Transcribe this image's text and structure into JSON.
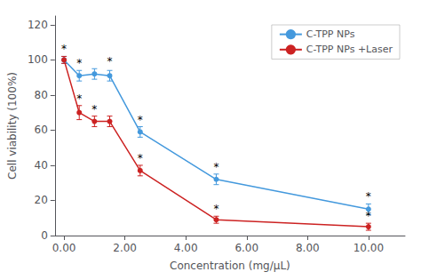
{
  "chart_data": {
    "type": "line",
    "xlabel": "Concentration (mg/μL)",
    "ylabel": "Cell viability (100%)",
    "x": [
      0.0,
      0.5,
      1.0,
      1.5,
      2.5,
      5.0,
      10.0
    ],
    "series": [
      {
        "name": "C-TPP NPs",
        "color": "#4499DD",
        "marker": "circle",
        "line_style": "solid",
        "values": [
          100,
          91,
          92,
          91,
          59,
          32,
          15
        ],
        "errors": [
          2,
          3,
          3,
          3,
          3,
          3,
          3
        ]
      },
      {
        "name": "C-TPP NPs +Laser",
        "color": "#CC2222",
        "marker": "circle",
        "line_style": "solid",
        "values": [
          100,
          70,
          65,
          65,
          37,
          9,
          5
        ],
        "errors": [
          2,
          4,
          3,
          3,
          3,
          2,
          2
        ]
      }
    ],
    "annotations": [
      {
        "text": "*",
        "x": 0.0,
        "y": 103
      },
      {
        "text": "*",
        "x": 0.5,
        "y": 95
      },
      {
        "text": "*",
        "x": 1.5,
        "y": 96
      },
      {
        "text": "*",
        "x": 2.5,
        "y": 63
      },
      {
        "text": "*",
        "x": 5.0,
        "y": 36
      },
      {
        "text": "*",
        "x": 10.0,
        "y": 19
      },
      {
        "text": "*",
        "x": 0.5,
        "y": 75
      },
      {
        "text": "*",
        "x": 1.0,
        "y": 69
      },
      {
        "text": "*",
        "x": 2.5,
        "y": 41
      },
      {
        "text": "*",
        "x": 5.0,
        "y": 12
      },
      {
        "text": "*",
        "x": 10.0,
        "y": 8
      }
    ],
    "xlim": [
      -0.3,
      11.2
    ],
    "xticks": [
      {
        "value": 0.0,
        "label": "0.00"
      },
      {
        "value": 2.0,
        "label": "2.00"
      },
      {
        "value": 4.0,
        "label": "4.00"
      },
      {
        "value": 6.0,
        "label": "6.00"
      },
      {
        "value": 8.0,
        "label": "8.00"
      },
      {
        "value": 10.0,
        "label": "10.00"
      }
    ],
    "ylim": [
      0,
      125
    ],
    "yticks": [
      0,
      20,
      40,
      60,
      80,
      100,
      120
    ],
    "grid": false,
    "legend": "upper right"
  }
}
